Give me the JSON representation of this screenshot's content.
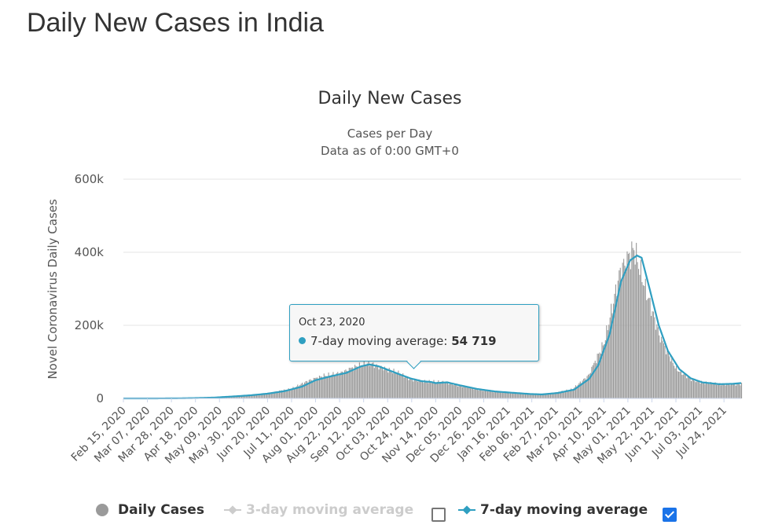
{
  "page": {
    "title": "Daily New Cases in India"
  },
  "chart_data": {
    "type": "bar",
    "title": "Daily New Cases",
    "subtitle": [
      "Cases per Day",
      "Data as of 0:00 GMT+0"
    ],
    "ylabel": "Novel Coronavirus Daily Cases",
    "xlabel": "",
    "ylim": [
      0,
      600000
    ],
    "yticks": [
      {
        "value": 0,
        "label": "0"
      },
      {
        "value": 200000,
        "label": "200k"
      },
      {
        "value": 400000,
        "label": "400k"
      },
      {
        "value": 600000,
        "label": "600k"
      }
    ],
    "x_range": [
      "2020-02-15",
      "2021-08-08"
    ],
    "xtick_labels": [
      "Feb 15, 2020",
      "Mar 07, 2020",
      "Mar 28, 2020",
      "Apr 18, 2020",
      "May 09, 2020",
      "May 30, 2020",
      "Jun 20, 2020",
      "Jul 11, 2020",
      "Aug 01, 2020",
      "Aug 22, 2020",
      "Sep 12, 2020",
      "Oct 03, 2020",
      "Oct 24, 2020",
      "Nov 14, 2020",
      "Dec 05, 2020",
      "Dec 26, 2020",
      "Jan 16, 2021",
      "Feb 06, 2021",
      "Feb 27, 2021",
      "Mar 20, 2021",
      "Apr 10, 2021",
      "May 01, 2021",
      "May 22, 2021",
      "Jun 12, 2021",
      "Jul 03, 2021",
      "Jul 24, 2021"
    ],
    "grid": true,
    "legend_position": "bottom",
    "colors": {
      "daily": "#9a9a9a",
      "ma7": "#2f9fc1",
      "ma3_disabled": "#cccccc"
    },
    "series": [
      {
        "name": "Daily Cases",
        "type": "bar",
        "values_approx": "weekly",
        "points": [
          [
            "2020-02-15",
            0
          ],
          [
            "2020-03-07",
            20
          ],
          [
            "2020-03-21",
            150
          ],
          [
            "2020-04-04",
            500
          ],
          [
            "2020-04-18",
            1300
          ],
          [
            "2020-05-02",
            2400
          ],
          [
            "2020-05-16",
            4500
          ],
          [
            "2020-05-30",
            8000
          ],
          [
            "2020-06-13",
            11500
          ],
          [
            "2020-06-27",
            18500
          ],
          [
            "2020-07-11",
            27000
          ],
          [
            "2020-07-25",
            48000
          ],
          [
            "2020-08-08",
            62000
          ],
          [
            "2020-08-22",
            69000
          ],
          [
            "2020-09-05",
            87000
          ],
          [
            "2020-09-16",
            97000
          ],
          [
            "2020-09-26",
            86000
          ],
          [
            "2020-10-10",
            72000
          ],
          [
            "2020-10-23",
            52000
          ],
          [
            "2020-11-07",
            46000
          ],
          [
            "2020-11-21",
            45000
          ],
          [
            "2020-12-05",
            35000
          ],
          [
            "2020-12-19",
            25000
          ],
          [
            "2021-01-02",
            19000
          ],
          [
            "2021-01-16",
            15000
          ],
          [
            "2021-01-30",
            12500
          ],
          [
            "2021-02-13",
            11000
          ],
          [
            "2021-02-27",
            16500
          ],
          [
            "2021-03-13",
            25000
          ],
          [
            "2021-03-27",
            62000
          ],
          [
            "2021-04-10",
            153000
          ],
          [
            "2021-04-24",
            349000
          ],
          [
            "2021-05-06",
            410000
          ],
          [
            "2021-05-15",
            310000
          ],
          [
            "2021-05-29",
            165000
          ],
          [
            "2021-06-12",
            80000
          ],
          [
            "2021-06-26",
            50000
          ],
          [
            "2021-07-10",
            41000
          ],
          [
            "2021-07-24",
            39000
          ],
          [
            "2021-08-08",
            39000
          ]
        ]
      },
      {
        "name": "3-day moving average",
        "visible": false
      },
      {
        "name": "7-day moving average",
        "type": "line",
        "points": [
          [
            "2020-02-15",
            0
          ],
          [
            "2020-03-15",
            50
          ],
          [
            "2020-04-05",
            400
          ],
          [
            "2020-04-20",
            1100
          ],
          [
            "2020-05-05",
            2400
          ],
          [
            "2020-05-20",
            5200
          ],
          [
            "2020-06-05",
            8500
          ],
          [
            "2020-06-20",
            13000
          ],
          [
            "2020-07-05",
            20000
          ],
          [
            "2020-07-20",
            32000
          ],
          [
            "2020-08-01",
            50000
          ],
          [
            "2020-08-15",
            61000
          ],
          [
            "2020-08-28",
            70000
          ],
          [
            "2020-09-10",
            88000
          ],
          [
            "2020-09-17",
            93000
          ],
          [
            "2020-09-25",
            88000
          ],
          [
            "2020-10-05",
            76000
          ],
          [
            "2020-10-15",
            64000
          ],
          [
            "2020-10-23",
            54719
          ],
          [
            "2020-11-02",
            47000
          ],
          [
            "2020-11-10",
            45000
          ],
          [
            "2020-11-14",
            42000
          ],
          [
            "2020-11-24",
            44000
          ],
          [
            "2020-12-05",
            36000
          ],
          [
            "2020-12-20",
            26000
          ],
          [
            "2021-01-05",
            19000
          ],
          [
            "2021-01-20",
            15500
          ],
          [
            "2021-02-05",
            12000
          ],
          [
            "2021-02-15",
            11000
          ],
          [
            "2021-03-01",
            15000
          ],
          [
            "2021-03-15",
            24000
          ],
          [
            "2021-03-28",
            53000
          ],
          [
            "2021-04-05",
            90000
          ],
          [
            "2021-04-15",
            175000
          ],
          [
            "2021-04-25",
            320000
          ],
          [
            "2021-05-03",
            378000
          ],
          [
            "2021-05-09",
            391000
          ],
          [
            "2021-05-13",
            385000
          ],
          [
            "2021-05-20",
            300000
          ],
          [
            "2021-05-28",
            200000
          ],
          [
            "2021-06-05",
            130000
          ],
          [
            "2021-06-15",
            80000
          ],
          [
            "2021-06-25",
            55000
          ],
          [
            "2021-07-05",
            44000
          ],
          [
            "2021-07-20",
            39000
          ],
          [
            "2021-08-01",
            40000
          ],
          [
            "2021-08-08",
            42000
          ]
        ]
      }
    ],
    "tooltip": {
      "date": "Oct 23, 2020",
      "series": "7-day moving average",
      "value": "54 719"
    }
  },
  "legend": {
    "daily": {
      "label": "Daily Cases"
    },
    "ma3": {
      "label": "3-day moving average",
      "checked": false
    },
    "ma7": {
      "label": "7-day moving average",
      "checked": true
    }
  }
}
